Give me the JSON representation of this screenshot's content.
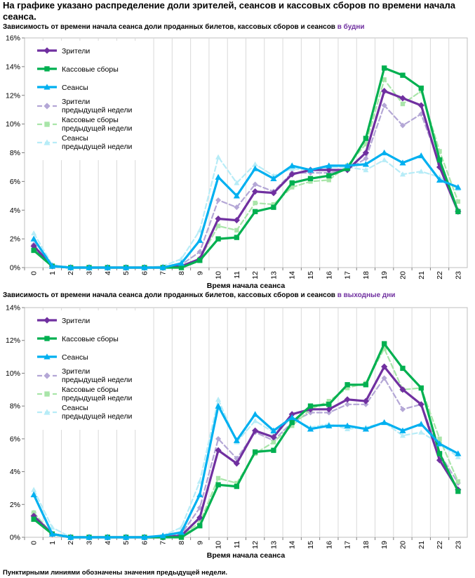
{
  "heading": "На графике указано распределение доли зрителей, сеансов и кассовых сборов по времени начала сеанса.",
  "footnote": "Пунктирными линиями обозначены значения предыдущей недели.",
  "series_styles": [
    {
      "color": "#7030a0",
      "marker": "diamond",
      "dash": false
    },
    {
      "color": "#00b050",
      "marker": "square",
      "dash": false
    },
    {
      "color": "#00b0f0",
      "marker": "triangle",
      "dash": false
    },
    {
      "color": "#b4a7d6",
      "marker": "diamond",
      "dash": true
    },
    {
      "color": "#a9e5a9",
      "marker": "square",
      "dash": true
    },
    {
      "color": "#b7ecf7",
      "marker": "triangle",
      "dash": true
    }
  ],
  "chart_data": [
    {
      "type": "line",
      "title_main": "Зависимость от времени начала сеанса доли проданных билетов, кассовых сборов и сеансов",
      "title_accent": "в будни",
      "xlabel": "Время начала сеанса",
      "ylabel": "",
      "ylim": [
        0,
        16
      ],
      "yticks": [
        "0%",
        "2%",
        "4%",
        "6%",
        "8%",
        "10%",
        "12%",
        "14%",
        "16%"
      ],
      "categories": [
        "0",
        "1",
        "2",
        "3",
        "4",
        "5",
        "6",
        "7",
        "8",
        "9",
        "10",
        "11",
        "12",
        "13",
        "14",
        "15",
        "16",
        "17",
        "18",
        "19",
        "20",
        "21",
        "22",
        "23"
      ],
      "grid": "vertical",
      "legend_position": "top-left",
      "series": [
        {
          "name": "Зрители",
          "values": [
            1.5,
            0.1,
            0,
            0,
            0,
            0,
            0,
            0,
            0.1,
            0.6,
            3.4,
            3.3,
            5.3,
            5.2,
            6.5,
            6.8,
            6.8,
            6.8,
            8.0,
            12.3,
            11.8,
            11.3,
            7.0,
            3.9
          ]
        },
        {
          "name": "Кассовые сборы",
          "values": [
            1.2,
            0.1,
            0,
            0,
            0,
            0,
            0,
            0,
            0,
            0.5,
            2.0,
            2.1,
            3.9,
            4.2,
            5.9,
            6.2,
            6.4,
            6.9,
            9.0,
            13.9,
            13.4,
            12.5,
            7.5,
            3.9
          ]
        },
        {
          "name": "Сеансы",
          "values": [
            2.0,
            0.1,
            0,
            0,
            0,
            0,
            0,
            0,
            0.3,
            1.9,
            6.3,
            5.0,
            6.9,
            6.2,
            7.1,
            6.8,
            7.1,
            7.1,
            7.2,
            8.0,
            7.3,
            7.8,
            6.1,
            5.6
          ]
        },
        {
          "name": "Зрители предыдущей недели",
          "values": [
            1.6,
            0.1,
            0,
            0,
            0,
            0,
            0,
            0,
            0.2,
            1.1,
            4.7,
            4.2,
            5.8,
            5.3,
            6.6,
            6.6,
            6.6,
            6.8,
            7.6,
            11.3,
            9.9,
            10.7,
            7.2,
            4.0
          ]
        },
        {
          "name": "Кассовые сборы предыдущей недели",
          "values": [
            1.4,
            0.1,
            0,
            0,
            0,
            0,
            0,
            0,
            0.1,
            0.6,
            2.9,
            2.6,
            4.5,
            4.4,
            5.6,
            6.0,
            6.1,
            7.1,
            8.6,
            13.1,
            11.4,
            12.3,
            8.1,
            4.6
          ]
        },
        {
          "name": "Сеансы предыдущей недели",
          "values": [
            2.4,
            0.2,
            0,
            0,
            0,
            0,
            0,
            0.1,
            0.6,
            2.6,
            7.7,
            5.9,
            7.2,
            6.4,
            6.9,
            6.8,
            7.0,
            7.0,
            6.8,
            7.5,
            6.5,
            6.7,
            6.3,
            5.5
          ]
        }
      ]
    },
    {
      "type": "line",
      "title_main": "Зависимость от времени начала сеанса доли проданных билетов, кассовых сборов и сеансов",
      "title_accent": "в выходные дни",
      "xlabel": "Время начала сеанса",
      "ylabel": "",
      "ylim": [
        0,
        14
      ],
      "yticks": [
        "0%",
        "2%",
        "4%",
        "6%",
        "8%",
        "10%",
        "12%",
        "14%"
      ],
      "categories": [
        "0",
        "1",
        "2",
        "3",
        "4",
        "5",
        "6",
        "7",
        "8",
        "9",
        "10",
        "11",
        "12",
        "13",
        "14",
        "15",
        "16",
        "17",
        "18",
        "19",
        "20",
        "21",
        "22",
        "23"
      ],
      "grid": "vertical",
      "legend_position": "top-left",
      "series": [
        {
          "name": "Зрители",
          "values": [
            1.3,
            0.2,
            0,
            0,
            0,
            0,
            0,
            0,
            0.1,
            1.2,
            5.3,
            4.5,
            6.5,
            6.1,
            7.5,
            7.8,
            7.8,
            8.4,
            8.3,
            10.4,
            9.0,
            8.1,
            4.7,
            2.9
          ]
        },
        {
          "name": "Кассовые сборы",
          "values": [
            1.1,
            0.2,
            0,
            0,
            0,
            0,
            0,
            0,
            0,
            0.7,
            3.2,
            3.1,
            5.2,
            5.3,
            7.0,
            8.0,
            8.1,
            9.3,
            9.3,
            11.8,
            10.3,
            9.1,
            5.1,
            2.8
          ]
        },
        {
          "name": "Сеансы",
          "values": [
            2.6,
            0.2,
            0,
            0,
            0,
            0,
            0,
            0.1,
            0.3,
            2.6,
            8.0,
            5.9,
            7.5,
            6.5,
            7.3,
            6.6,
            6.8,
            6.8,
            6.6,
            7.0,
            6.5,
            6.9,
            5.7,
            5.1
          ]
        },
        {
          "name": "Зрители предыдущей недели",
          "values": [
            1.5,
            0.2,
            0,
            0,
            0,
            0,
            0,
            0,
            0.2,
            1.8,
            6.0,
            4.8,
            6.4,
            5.9,
            7.0,
            7.6,
            7.6,
            8.1,
            8.1,
            9.7,
            7.8,
            8.1,
            5.1,
            3.3
          ]
        },
        {
          "name": "Кассовые сборы предыдущей недели",
          "values": [
            1.5,
            0.2,
            0,
            0,
            0,
            0,
            0,
            0,
            0.1,
            0.9,
            3.6,
            3.3,
            5.1,
            5.8,
            6.8,
            7.8,
            8.3,
            9.1,
            9.4,
            11.5,
            9.0,
            9.1,
            6.0,
            3.4
          ]
        },
        {
          "name": "Сеансы предыдущей недели",
          "values": [
            2.9,
            0.6,
            0,
            0,
            0,
            0,
            0,
            0.1,
            0.6,
            3.4,
            8.4,
            5.8,
            7.1,
            6.4,
            7.2,
            6.7,
            6.9,
            6.6,
            6.7,
            7.0,
            6.2,
            6.4,
            5.7,
            4.9
          ]
        }
      ]
    }
  ]
}
